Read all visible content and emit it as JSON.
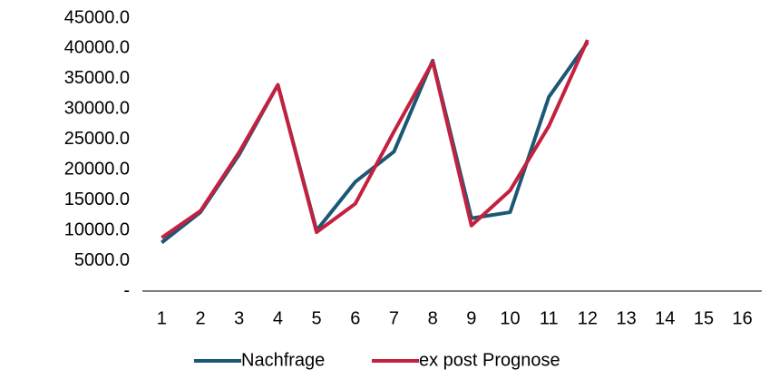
{
  "chart_data": {
    "type": "line",
    "categories": [
      "1",
      "2",
      "3",
      "4",
      "5",
      "6",
      "7",
      "8",
      "9",
      "10",
      "11",
      "12",
      "13",
      "14",
      "15",
      "16"
    ],
    "series": [
      {
        "name": "Nachfrage",
        "color": "#1b5876",
        "values": [
          8000,
          13000,
          22500,
          34000,
          10000,
          18000,
          23000,
          38000,
          12000,
          13000,
          32000,
          41000,
          null,
          null,
          null,
          null
        ]
      },
      {
        "name": "ex post Prognose",
        "color": "#c3213f",
        "values": [
          8800,
          13200,
          22900,
          34000,
          9700,
          14400,
          26300,
          37800,
          10800,
          16600,
          27200,
          41400,
          null,
          null,
          null,
          null
        ]
      }
    ],
    "ylim": [
      0,
      45000
    ],
    "yticks": [
      {
        "value": 0,
        "label": "-"
      },
      {
        "value": 5000,
        "label": "5000.0"
      },
      {
        "value": 10000,
        "label": "10000.0"
      },
      {
        "value": 15000,
        "label": "15000.0"
      },
      {
        "value": 20000,
        "label": "20000.0"
      },
      {
        "value": 25000,
        "label": "25000.0"
      },
      {
        "value": 30000,
        "label": "30000.0"
      },
      {
        "value": 35000,
        "label": "35000.0"
      },
      {
        "value": 40000,
        "label": "40000.0"
      },
      {
        "value": 45000,
        "label": "45000.0"
      }
    ],
    "legend": "bottom"
  }
}
